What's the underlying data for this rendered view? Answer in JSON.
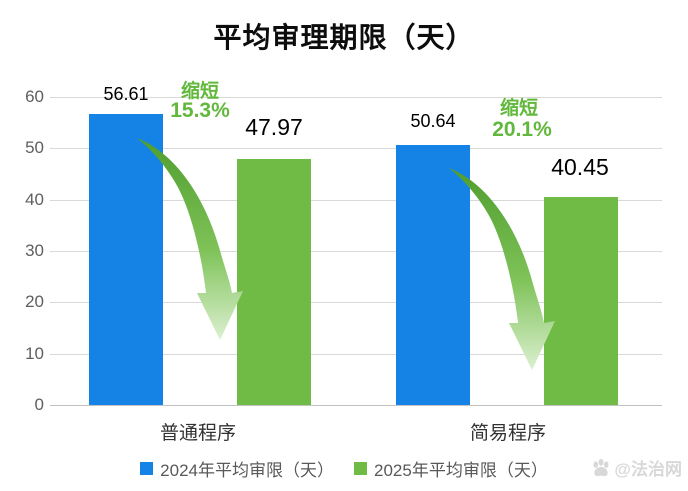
{
  "chart_data": {
    "type": "bar",
    "title": "平均审理期限（天）",
    "categories": [
      "普通程序",
      "简易程序"
    ],
    "series": [
      {
        "name": "2024年平均审限（天）",
        "color": "#1583e6",
        "values": [
          56.61,
          50.64
        ]
      },
      {
        "name": "2025年平均审限（天）",
        "color": "#70bb45",
        "values": [
          47.97,
          40.45
        ]
      }
    ],
    "annotations": [
      {
        "label": "缩短",
        "value": "15.3%",
        "category": "普通程序"
      },
      {
        "label": "缩短",
        "value": "20.1%",
        "category": "简易程序"
      }
    ],
    "ylim": [
      0,
      60
    ],
    "yticks": [
      0,
      10,
      20,
      30,
      40,
      50,
      60
    ],
    "grid": true,
    "legend_position": "bottom",
    "annotation_color": "#62b83c",
    "arrow_gradient": [
      "#4f9d2e",
      "#7ec258",
      "#dcf0d0"
    ]
  },
  "legend": {
    "items": [
      {
        "label": "2024年平均审限（天）",
        "color": "#1583e6"
      },
      {
        "label": "2025年平均审限（天）",
        "color": "#70bb45"
      }
    ]
  },
  "watermark": {
    "icon": "paw-icon",
    "text": "@法治网"
  }
}
